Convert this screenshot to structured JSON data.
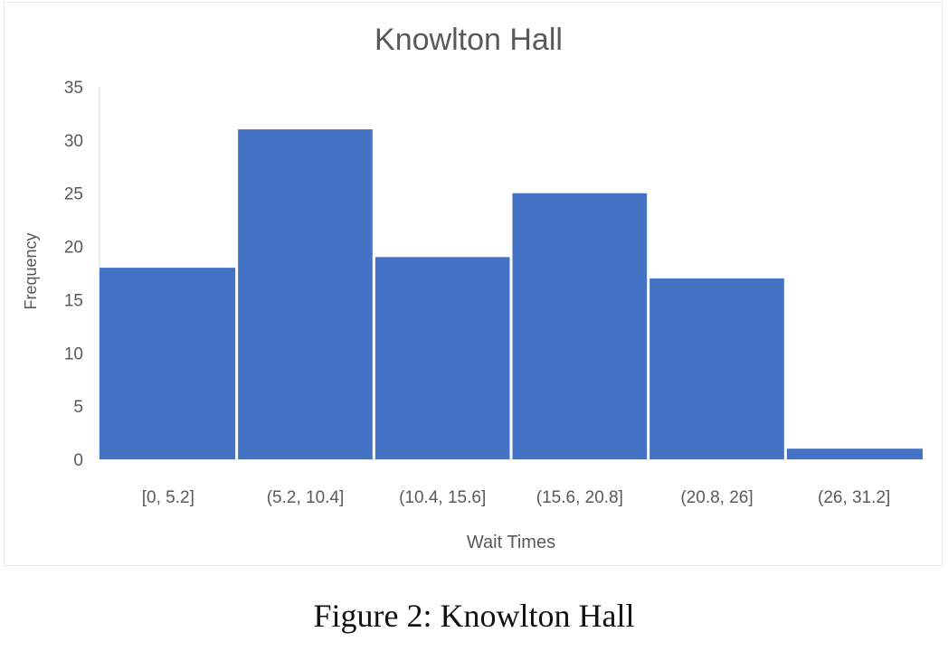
{
  "chart_data": {
    "type": "bar",
    "title": "Knowlton Hall",
    "xlabel": "Wait Times",
    "ylabel": "Frequency",
    "categories": [
      "[0, 5.2]",
      "(5.2, 10.4]",
      "(10.4, 15.6]",
      "(15.6, 20.8]",
      "(20.8, 26]",
      "(26, 31.2]"
    ],
    "values": [
      18,
      31,
      19,
      25,
      17,
      1
    ],
    "ylim": [
      0,
      35
    ],
    "yticks": [
      0,
      5,
      10,
      15,
      20,
      25,
      30,
      35
    ],
    "grid": false,
    "legend": "none",
    "bar_color": "#4472c4"
  },
  "caption": "Figure 2: Knowlton Hall"
}
